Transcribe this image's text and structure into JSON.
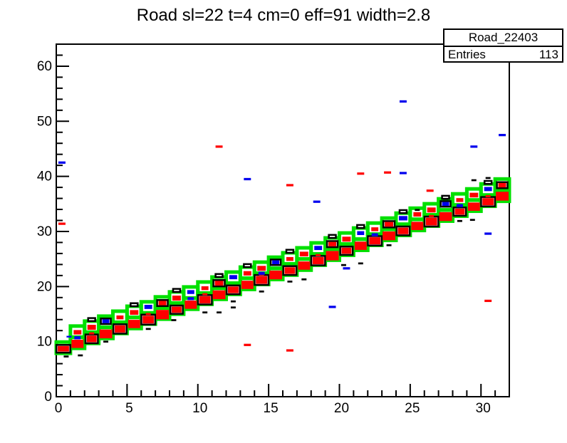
{
  "title": "Road sl=22 t=4 cm=0 eff=91 width=2.8",
  "stats": {
    "name": "Road_22403",
    "entries_label": "Entries",
    "entries_value": "113"
  },
  "chart_data": {
    "type": "scatter",
    "note": "ROOT TH2 drawn with BOX option; box size ~ bin content; data coords",
    "title": "Road sl=22 t=4 cm=0 eff=91 width=2.8",
    "xlim": [
      0,
      32
    ],
    "ylim": [
      0,
      64
    ],
    "x_major_ticks": [
      0,
      5,
      10,
      15,
      20,
      25,
      30
    ],
    "x_minor_step": 1,
    "y_major_ticks": [
      0,
      10,
      20,
      30,
      40,
      50,
      60
    ],
    "y_minor_step": 2,
    "grid": "off",
    "legend": "none",
    "colors": {
      "road": "#00e000",
      "hits_red": "#ff0000",
      "hits_blue": "#0000ee",
      "hits_black": "#000000",
      "frame": "#000000"
    },
    "green_box_w": 1.0,
    "green_box_h": 2.05,
    "green_boxes": [
      [
        0.5,
        8.9
      ],
      [
        1.5,
        9.8
      ],
      [
        1.5,
        11.8
      ],
      [
        2.5,
        10.7
      ],
      [
        2.5,
        12.7
      ],
      [
        3.5,
        11.6
      ],
      [
        3.5,
        13.6
      ],
      [
        4.5,
        12.5
      ],
      [
        4.5,
        14.5
      ],
      [
        5.5,
        13.4
      ],
      [
        5.5,
        15.4
      ],
      [
        6.5,
        14.2
      ],
      [
        6.5,
        16.2
      ],
      [
        7.5,
        15.1
      ],
      [
        7.5,
        17.1
      ],
      [
        8.5,
        16.0
      ],
      [
        8.5,
        18.0
      ],
      [
        9.5,
        16.9
      ],
      [
        9.5,
        18.9
      ],
      [
        10.5,
        17.8
      ],
      [
        10.5,
        19.8
      ],
      [
        11.5,
        18.7
      ],
      [
        11.5,
        20.7
      ],
      [
        12.5,
        19.6
      ],
      [
        12.5,
        21.6
      ],
      [
        13.5,
        20.5
      ],
      [
        13.5,
        22.5
      ],
      [
        14.5,
        21.4
      ],
      [
        14.5,
        23.4
      ],
      [
        15.5,
        22.3
      ],
      [
        15.5,
        24.3
      ],
      [
        16.5,
        23.1
      ],
      [
        16.5,
        25.1
      ],
      [
        17.5,
        24.0
      ],
      [
        17.5,
        26.0
      ],
      [
        18.5,
        24.9
      ],
      [
        18.5,
        26.9
      ],
      [
        19.5,
        25.8
      ],
      [
        19.5,
        27.8
      ],
      [
        20.5,
        26.7
      ],
      [
        20.5,
        28.7
      ],
      [
        21.5,
        27.6
      ],
      [
        21.5,
        29.6
      ],
      [
        22.5,
        28.5
      ],
      [
        22.5,
        30.5
      ],
      [
        23.5,
        29.4
      ],
      [
        23.5,
        31.4
      ],
      [
        24.5,
        30.3
      ],
      [
        24.5,
        32.3
      ],
      [
        25.5,
        31.2
      ],
      [
        25.5,
        33.2
      ],
      [
        26.5,
        32.0
      ],
      [
        26.5,
        34.0
      ],
      [
        27.5,
        32.9
      ],
      [
        27.5,
        34.9
      ],
      [
        28.5,
        33.8
      ],
      [
        28.5,
        35.8
      ],
      [
        29.5,
        34.7
      ],
      [
        29.5,
        36.7
      ],
      [
        30.5,
        35.6
      ],
      [
        30.5,
        37.6
      ],
      [
        31.5,
        36.5
      ],
      [
        31.5,
        38.5
      ]
    ],
    "black_open_boxes": [
      [
        0.5,
        8.7,
        0.98,
        1.4
      ],
      [
        2.5,
        10.5,
        0.88,
        1.6
      ],
      [
        4.5,
        12.3,
        0.93,
        1.7
      ],
      [
        6.5,
        14.0,
        0.98,
        1.8
      ],
      [
        8.5,
        15.8,
        0.88,
        1.5
      ],
      [
        10.5,
        17.6,
        0.98,
        1.7
      ],
      [
        12.5,
        19.4,
        0.93,
        1.6
      ],
      [
        14.5,
        21.2,
        0.98,
        1.8
      ],
      [
        16.5,
        22.9,
        0.93,
        1.6
      ],
      [
        18.5,
        24.7,
        0.98,
        1.7
      ],
      [
        20.5,
        26.5,
        0.88,
        1.5
      ],
      [
        22.5,
        28.3,
        0.98,
        1.7
      ],
      [
        24.5,
        30.1,
        0.93,
        1.6
      ],
      [
        26.5,
        31.8,
        0.98,
        1.8
      ],
      [
        28.5,
        33.6,
        0.88,
        1.5
      ],
      [
        30.5,
        35.4,
        0.98,
        1.7
      ],
      [
        3.5,
        13.7,
        0.7,
        1.0
      ],
      [
        7.5,
        17.0,
        0.75,
        1.1
      ],
      [
        11.5,
        20.6,
        0.8,
        1.15
      ],
      [
        15.5,
        24.4,
        0.7,
        1.0
      ],
      [
        19.5,
        27.7,
        0.75,
        1.1
      ],
      [
        23.5,
        31.3,
        0.8,
        1.15
      ],
      [
        27.5,
        35.0,
        0.7,
        1.0
      ],
      [
        31.5,
        38.4,
        0.75,
        1.1
      ],
      [
        2.5,
        14.0,
        0.5,
        0.55
      ],
      [
        5.5,
        16.7,
        0.5,
        0.55
      ],
      [
        8.5,
        19.3,
        0.5,
        0.55
      ],
      [
        11.5,
        22.0,
        0.5,
        0.55
      ],
      [
        13.5,
        23.8,
        0.5,
        0.55
      ],
      [
        16.5,
        26.4,
        0.5,
        0.55
      ],
      [
        19.5,
        29.1,
        0.5,
        0.55
      ],
      [
        21.5,
        30.9,
        0.5,
        0.55
      ],
      [
        24.5,
        33.6,
        0.5,
        0.55
      ],
      [
        27.5,
        36.2,
        0.5,
        0.55
      ],
      [
        30.5,
        38.9,
        0.5,
        0.55
      ]
    ],
    "red_boxes": [
      [
        0.5,
        8.7,
        0.8,
        1.0
      ],
      [
        1.5,
        9.6,
        0.85,
        1.5
      ],
      [
        2.5,
        10.5,
        0.7,
        1.2
      ],
      [
        3.5,
        11.4,
        0.9,
        1.6
      ],
      [
        4.5,
        12.3,
        0.75,
        1.3
      ],
      [
        5.5,
        13.2,
        0.85,
        1.5
      ],
      [
        6.5,
        14.0,
        0.8,
        1.4
      ],
      [
        7.5,
        14.9,
        0.9,
        1.7
      ],
      [
        8.5,
        15.8,
        0.7,
        1.1
      ],
      [
        9.5,
        16.7,
        0.85,
        1.5
      ],
      [
        10.5,
        17.6,
        0.8,
        1.3
      ],
      [
        11.5,
        18.5,
        0.9,
        1.6
      ],
      [
        12.5,
        19.4,
        0.75,
        1.2
      ],
      [
        13.5,
        20.3,
        0.85,
        1.5
      ],
      [
        14.5,
        21.2,
        0.8,
        1.4
      ],
      [
        15.5,
        22.1,
        0.9,
        1.6
      ],
      [
        16.5,
        22.9,
        0.75,
        1.2
      ],
      [
        17.5,
        23.8,
        0.85,
        1.5
      ],
      [
        18.5,
        24.7,
        0.8,
        1.3
      ],
      [
        19.5,
        25.6,
        0.9,
        1.7
      ],
      [
        20.5,
        26.5,
        0.7,
        1.1
      ],
      [
        21.5,
        27.4,
        0.85,
        1.5
      ],
      [
        22.5,
        28.3,
        0.8,
        1.3
      ],
      [
        23.5,
        29.2,
        0.9,
        1.6
      ],
      [
        24.5,
        30.1,
        0.75,
        1.2
      ],
      [
        25.5,
        31.0,
        0.85,
        1.5
      ],
      [
        26.5,
        31.8,
        0.8,
        1.4
      ],
      [
        27.5,
        32.7,
        0.9,
        1.6
      ],
      [
        28.5,
        33.6,
        0.7,
        1.1
      ],
      [
        29.5,
        34.5,
        0.85,
        1.5
      ],
      [
        30.5,
        35.4,
        0.8,
        1.3
      ],
      [
        31.5,
        36.4,
        0.9,
        1.6
      ],
      [
        1.5,
        11.7,
        0.55,
        0.8
      ],
      [
        2.5,
        12.6,
        0.6,
        0.9
      ],
      [
        4.5,
        14.4,
        0.5,
        0.7
      ],
      [
        5.5,
        15.3,
        0.6,
        0.85
      ],
      [
        7.5,
        17.0,
        0.55,
        0.8
      ],
      [
        8.5,
        17.9,
        0.6,
        0.9
      ],
      [
        10.5,
        19.7,
        0.5,
        0.7
      ],
      [
        11.5,
        20.6,
        0.6,
        0.85
      ],
      [
        13.5,
        22.4,
        0.55,
        0.8
      ],
      [
        14.5,
        23.3,
        0.6,
        0.9
      ],
      [
        16.5,
        25.0,
        0.5,
        0.7
      ],
      [
        17.5,
        25.9,
        0.6,
        0.85
      ],
      [
        19.5,
        27.7,
        0.55,
        0.8
      ],
      [
        20.5,
        28.6,
        0.6,
        0.9
      ],
      [
        22.5,
        30.4,
        0.5,
        0.7
      ],
      [
        23.5,
        31.3,
        0.6,
        0.85
      ],
      [
        25.5,
        33.1,
        0.55,
        0.8
      ],
      [
        26.5,
        33.9,
        0.6,
        0.9
      ],
      [
        28.5,
        35.7,
        0.5,
        0.7
      ],
      [
        29.5,
        36.6,
        0.6,
        0.85
      ],
      [
        31.5,
        38.4,
        0.55,
        0.8
      ],
      [
        2.5,
        11.5,
        0.35,
        0.4
      ],
      [
        6.5,
        15.0,
        0.35,
        0.4
      ],
      [
        10.5,
        18.6,
        0.35,
        0.4
      ],
      [
        14.5,
        22.2,
        0.35,
        0.4
      ],
      [
        18.5,
        25.7,
        0.35,
        0.4
      ],
      [
        22.5,
        29.3,
        0.35,
        0.4
      ],
      [
        26.5,
        32.8,
        0.35,
        0.4
      ],
      [
        30.5,
        36.4,
        0.35,
        0.4
      ]
    ],
    "red_outlier_dashes": [
      [
        0.4,
        31.4
      ],
      [
        11.5,
        45.4
      ],
      [
        13.5,
        9.4
      ],
      [
        16.5,
        8.4
      ],
      [
        16.5,
        38.4
      ],
      [
        21.5,
        40.5
      ],
      [
        23.4,
        40.7
      ],
      [
        26.4,
        37.4
      ],
      [
        30.5,
        17.4
      ]
    ],
    "blue_boxes": [
      [
        0.9,
        10.9,
        0.35,
        0.3
      ],
      [
        3.5,
        13.7,
        0.5,
        0.7
      ],
      [
        6.5,
        16.3,
        0.55,
        0.75
      ],
      [
        9.5,
        19.0,
        0.5,
        0.7
      ],
      [
        12.5,
        21.7,
        0.55,
        0.75
      ],
      [
        15.5,
        24.4,
        0.5,
        0.7
      ],
      [
        18.5,
        27.0,
        0.55,
        0.75
      ],
      [
        21.5,
        29.7,
        0.5,
        0.7
      ],
      [
        24.5,
        32.4,
        0.6,
        0.8
      ],
      [
        27.5,
        35.0,
        0.5,
        0.7
      ],
      [
        30.5,
        37.7,
        0.55,
        0.75
      ],
      [
        1.5,
        10.7,
        0.45,
        0.55
      ],
      [
        9.5,
        17.8,
        0.45,
        0.55
      ],
      [
        14.5,
        22.4,
        0.45,
        0.55
      ],
      [
        22.5,
        29.4,
        0.45,
        0.55
      ],
      [
        28.5,
        34.7,
        0.45,
        0.55
      ]
    ],
    "blue_outlier_dashes": [
      [
        0.4,
        42.5
      ],
      [
        13.5,
        39.5
      ],
      [
        18.4,
        35.4
      ],
      [
        19.5,
        16.3
      ],
      [
        20.5,
        23.3
      ],
      [
        24.5,
        40.6
      ],
      [
        24.5,
        53.6
      ],
      [
        29.5,
        45.4
      ],
      [
        30.5,
        29.6
      ],
      [
        31.5,
        47.5
      ]
    ],
    "black_dashes": [
      [
        0.7,
        7.3
      ],
      [
        1.7,
        7.5
      ],
      [
        3.5,
        10.0
      ],
      [
        6.5,
        12.3
      ],
      [
        8.3,
        13.9
      ],
      [
        10.5,
        15.3
      ],
      [
        11.5,
        15.3
      ],
      [
        12.5,
        16.2
      ],
      [
        12.5,
        17.3
      ],
      [
        14.5,
        19.1
      ],
      [
        16.5,
        20.9
      ],
      [
        17.5,
        21.3
      ],
      [
        20.3,
        23.9
      ],
      [
        21.5,
        24.2
      ],
      [
        23.5,
        27.5
      ],
      [
        25.5,
        33.9
      ],
      [
        27.5,
        35.9
      ],
      [
        28.5,
        31.9
      ],
      [
        29.4,
        32.1
      ],
      [
        29.5,
        39.3
      ],
      [
        30.5,
        39.7
      ]
    ]
  }
}
